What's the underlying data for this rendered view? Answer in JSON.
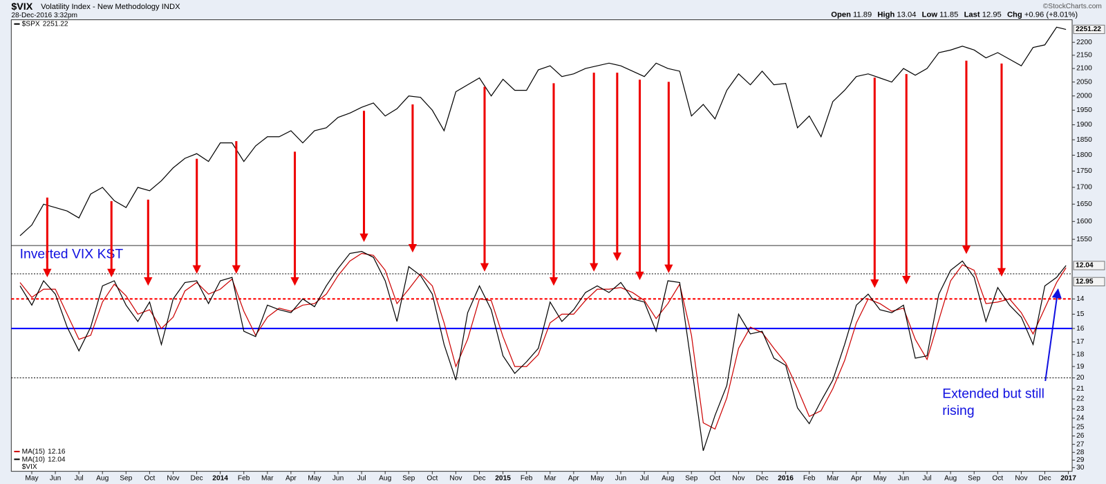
{
  "header": {
    "date": "28-Dec-2016 3:32pm",
    "title": "Volatility Index - New Methodology INDX",
    "source": "©StockCharts.com",
    "quote": [
      {
        "label": "Open",
        "value": "11.89"
      },
      {
        "label": "High",
        "value": "13.04"
      },
      {
        "label": "Low",
        "value": "11.85"
      },
      {
        "label": "Last",
        "value": "12.95"
      },
      {
        "label": "Chg",
        "value": "+0.96 (+8.01%)"
      }
    ]
  },
  "chart_data": [
    {
      "type": "line",
      "log_scale": true,
      "legend": "upper left",
      "x": [
        -0.5,
        0,
        0.5,
        1,
        1.5,
        2,
        2.5,
        3,
        3.5,
        4,
        4.5,
        5,
        5.5,
        6,
        6.5,
        7,
        7.5,
        8,
        8.5,
        9,
        9.5,
        10,
        10.5,
        11,
        11.5,
        12,
        12.5,
        13,
        13.5,
        14,
        14.5,
        15,
        15.5,
        16,
        16.5,
        17,
        17.5,
        18,
        18.5,
        19,
        19.5,
        20,
        20.5,
        21,
        21.5,
        22,
        22.5,
        23,
        23.5,
        24,
        24.5,
        25,
        25.5,
        26,
        26.5,
        27,
        27.5,
        28,
        28.5,
        29,
        29.5,
        30,
        30.5,
        31,
        31.5,
        32,
        32.5,
        33,
        33.5,
        34,
        34.5,
        35,
        35.5,
        36,
        36.5,
        37,
        37.5,
        38,
        38.5,
        39,
        39.5,
        40,
        40.5,
        41,
        41.5,
        42,
        42.5,
        43,
        43.5,
        43.9
      ],
      "xlim": [
        -0.87,
        44.16
      ],
      "ylim": [
        1533,
        2290
      ],
      "yticks": [
        1550,
        1600,
        1650,
        1700,
        1750,
        1800,
        1850,
        1900,
        1950,
        2000,
        2050,
        2100,
        2150,
        2200
      ],
      "series": [
        {
          "name": "$SPX",
          "color": "#000000",
          "last": 2251.22,
          "boxed": true,
          "values": [
            1560,
            1590,
            1650,
            1640,
            1630,
            1610,
            1680,
            1700,
            1660,
            1640,
            1700,
            1690,
            1720,
            1760,
            1790,
            1805,
            1780,
            1840,
            1840,
            1780,
            1830,
            1860,
            1860,
            1880,
            1840,
            1880,
            1890,
            1925,
            1940,
            1960,
            1975,
            1930,
            1955,
            2000,
            1995,
            1950,
            1880,
            2015,
            2040,
            2065,
            2000,
            2060,
            2020,
            2020,
            2095,
            2110,
            2070,
            2080,
            2100,
            2110,
            2120,
            2110,
            2090,
            2070,
            2120,
            2100,
            2090,
            1930,
            1970,
            1920,
            2020,
            2080,
            2040,
            2090,
            2040,
            2045,
            1890,
            1930,
            1860,
            1980,
            2020,
            2070,
            2080,
            2065,
            2050,
            2100,
            2075,
            2100,
            2160,
            2170,
            2185,
            2170,
            2140,
            2160,
            2135,
            2110,
            2180,
            2190,
            2260,
            2251
          ]
        }
      ]
    },
    {
      "type": "line",
      "title": "Inverted VIX KST",
      "annotation": "Extended but still rising",
      "symbol": "$VIX",
      "symbol_last": 12.95,
      "log_scale": true,
      "inverted": true,
      "legend": "lower left",
      "x": [
        -0.5,
        0,
        0.5,
        1,
        1.5,
        2,
        2.5,
        3,
        3.5,
        4,
        4.5,
        5,
        5.5,
        6,
        6.5,
        7,
        7.5,
        8,
        8.5,
        9,
        9.5,
        10,
        10.5,
        11,
        11.5,
        12,
        12.5,
        13,
        13.5,
        14,
        14.5,
        15,
        15.5,
        16,
        16.5,
        17,
        17.5,
        18,
        18.5,
        19,
        19.5,
        20,
        20.5,
        21,
        21.5,
        22,
        22.5,
        23,
        23.5,
        24,
        24.5,
        25,
        25.5,
        26,
        26.5,
        27,
        27.5,
        28,
        28.5,
        29,
        29.5,
        30,
        30.5,
        31,
        31.5,
        32,
        32.5,
        33,
        33.5,
        34,
        34.5,
        35,
        35.5,
        36,
        36.5,
        37,
        37.5,
        38,
        38.5,
        39,
        39.5,
        40,
        40.5,
        41,
        41.5,
        42,
        42.5,
        43,
        43.5,
        43.9
      ],
      "xlim": [
        -0.87,
        44.16
      ],
      "xticks": [
        {
          "value": 0,
          "label": "May"
        },
        {
          "value": 1,
          "label": "Jun"
        },
        {
          "value": 2,
          "label": "Jul"
        },
        {
          "value": 3,
          "label": "Aug"
        },
        {
          "value": 4,
          "label": "Sep"
        },
        {
          "value": 5,
          "label": "Oct"
        },
        {
          "value": 6,
          "label": "Nov"
        },
        {
          "value": 7,
          "label": "Dec"
        },
        {
          "value": 8,
          "label": "2014"
        },
        {
          "value": 9,
          "label": "Feb"
        },
        {
          "value": 10,
          "label": "Mar"
        },
        {
          "value": 11,
          "label": "Apr"
        },
        {
          "value": 12,
          "label": "May"
        },
        {
          "value": 13,
          "label": "Jun"
        },
        {
          "value": 14,
          "label": "Jul"
        },
        {
          "value": 15,
          "label": "Aug"
        },
        {
          "value": 16,
          "label": "Sep"
        },
        {
          "value": 17,
          "label": "Oct"
        },
        {
          "value": 18,
          "label": "Nov"
        },
        {
          "value": 19,
          "label": "Dec"
        },
        {
          "value": 20,
          "label": "2015"
        },
        {
          "value": 21,
          "label": "Feb"
        },
        {
          "value": 22,
          "label": "Mar"
        },
        {
          "value": 23,
          "label": "Apr"
        },
        {
          "value": 24,
          "label": "May"
        },
        {
          "value": 25,
          "label": "Jun"
        },
        {
          "value": 26,
          "label": "Jul"
        },
        {
          "value": 27,
          "label": "Aug"
        },
        {
          "value": 28,
          "label": "Sep"
        },
        {
          "value": 29,
          "label": "Oct"
        },
        {
          "value": 30,
          "label": "Nov"
        },
        {
          "value": 31,
          "label": "Dec"
        },
        {
          "value": 32,
          "label": "2016"
        },
        {
          "value": 33,
          "label": "Feb"
        },
        {
          "value": 34,
          "label": "Mar"
        },
        {
          "value": 35,
          "label": "Apr"
        },
        {
          "value": 36,
          "label": "May"
        },
        {
          "value": 37,
          "label": "Jun"
        },
        {
          "value": 38,
          "label": "Jul"
        },
        {
          "value": 39,
          "label": "Aug"
        },
        {
          "value": 40,
          "label": "Sep"
        },
        {
          "value": 41,
          "label": "Oct"
        },
        {
          "value": 42,
          "label": "Nov"
        },
        {
          "value": 43,
          "label": "Dec"
        },
        {
          "value": 44,
          "label": "2017"
        }
      ],
      "ylim": [
        11,
        30.5
      ],
      "yticks": [
        14,
        15,
        16,
        17,
        18,
        19,
        20,
        21,
        22,
        23,
        24,
        25,
        26,
        27,
        28,
        29,
        30
      ],
      "hlines": [
        {
          "value": 12.5,
          "style": "dotted",
          "color": "#000000"
        },
        {
          "value": 14,
          "style": "dashed",
          "color": "#ff0000"
        },
        {
          "value": 16,
          "style": "solid",
          "color": "#0000ff"
        },
        {
          "value": 20,
          "style": "dotted",
          "color": "#000000"
        }
      ],
      "series": [
        {
          "name": "MA(15)",
          "color": "#cc0000",
          "last": 12.16,
          "values": [
            13.0,
            13.9,
            13.4,
            13.4,
            15.0,
            16.8,
            16.5,
            14.2,
            13.1,
            13.8,
            15.0,
            14.7,
            16.0,
            15.2,
            13.5,
            13.0,
            13.7,
            13.4,
            12.8,
            14.8,
            16.5,
            15.2,
            14.6,
            14.8,
            14.4,
            14.3,
            13.7,
            12.6,
            11.8,
            11.4,
            11.5,
            12.3,
            14.3,
            13.4,
            12.5,
            13.2,
            15.6,
            19.0,
            16.8,
            14.0,
            14.1,
            16.6,
            19.0,
            19.0,
            18.0,
            15.6,
            15.0,
            15.0,
            14.1,
            13.4,
            13.4,
            13.3,
            13.6,
            14.1,
            15.3,
            14.3,
            13.1,
            16.5,
            24.5,
            25.2,
            21.9,
            17.5,
            15.9,
            16.3,
            17.5,
            18.7,
            21.0,
            23.8,
            23.2,
            21.0,
            18.5,
            15.6,
            14.0,
            14.3,
            14.8,
            14.6,
            16.8,
            18.4,
            15.4,
            12.9,
            12.0,
            12.3,
            14.3,
            14.2,
            14.0,
            14.9,
            16.4,
            14.6,
            13.0,
            12.16
          ]
        },
        {
          "name": "MA(10)",
          "color": "#000000",
          "last": 12.04,
          "boxed": true,
          "values": [
            13.2,
            14.4,
            12.9,
            13.7,
            15.9,
            17.7,
            15.9,
            13.2,
            12.9,
            14.4,
            15.5,
            14.2,
            17.2,
            14.0,
            13.0,
            12.9,
            14.3,
            12.9,
            12.7,
            16.2,
            16.6,
            14.4,
            14.7,
            14.9,
            14.0,
            14.5,
            13.2,
            12.2,
            11.4,
            11.3,
            11.6,
            12.9,
            15.5,
            12.1,
            12.6,
            13.7,
            17.2,
            20.2,
            14.9,
            13.2,
            14.7,
            18.1,
            19.6,
            18.6,
            17.5,
            14.2,
            15.5,
            14.7,
            13.6,
            13.2,
            13.6,
            13.0,
            14.0,
            14.2,
            16.2,
            12.9,
            13.0,
            18.9,
            27.8,
            23.7,
            20.7,
            15.0,
            16.4,
            16.2,
            18.3,
            18.9,
            22.9,
            24.6,
            22.2,
            20.2,
            17.2,
            14.4,
            13.7,
            14.7,
            14.9,
            14.4,
            18.3,
            18.1,
            13.7,
            12.3,
            11.8,
            12.7,
            15.5,
            13.3,
            14.4,
            15.2,
            17.2,
            13.2,
            12.7,
            12.04
          ]
        }
      ]
    }
  ]
}
